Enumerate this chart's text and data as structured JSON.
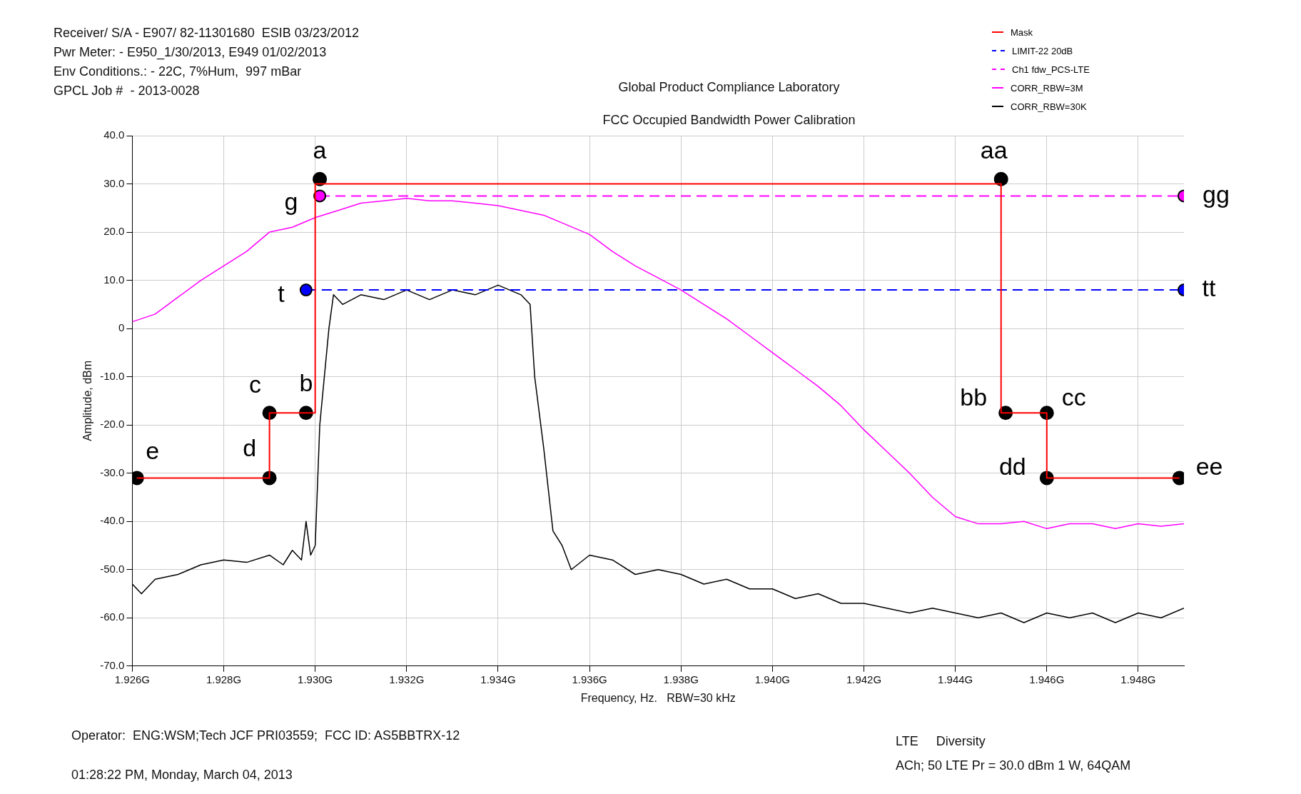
{
  "chart_data": {
    "type": "line",
    "title": "Global Product Compliance Laboratory",
    "subtitle": "FCC Occupied Bandwidth Power Calibration",
    "xlabel": "Frequency, Hz.   RBW=30 kHz",
    "ylabel": "Amplitude, dBm",
    "xlim": [
      1.926,
      1.949
    ],
    "xticks": [
      {
        "value": 1.926,
        "label": "1.926G"
      },
      {
        "value": 1.928,
        "label": "1.928G"
      },
      {
        "value": 1.93,
        "label": "1.930G"
      },
      {
        "value": 1.932,
        "label": "1.932G"
      },
      {
        "value": 1.934,
        "label": "1.934G"
      },
      {
        "value": 1.936,
        "label": "1.936G"
      },
      {
        "value": 1.938,
        "label": "1.938G"
      },
      {
        "value": 1.94,
        "label": "1.940G"
      },
      {
        "value": 1.942,
        "label": "1.942G"
      },
      {
        "value": 1.944,
        "label": "1.944G"
      },
      {
        "value": 1.946,
        "label": "1.946G"
      },
      {
        "value": 1.948,
        "label": "1.948G"
      }
    ],
    "ylim": [
      -70,
      40
    ],
    "yticks": [
      {
        "value": -70,
        "label": "-70.0"
      },
      {
        "value": -60,
        "label": "-60.0"
      },
      {
        "value": -50,
        "label": "-50.0"
      },
      {
        "value": -40,
        "label": "-40.0"
      },
      {
        "value": -30,
        "label": "-30.0"
      },
      {
        "value": -20,
        "label": "-20.0"
      },
      {
        "value": -10,
        "label": "-10.0"
      },
      0,
      {
        "value": 10,
        "label": "10.0"
      },
      {
        "value": 20,
        "label": "20.0"
      },
      {
        "value": 30,
        "label": "30.0"
      },
      {
        "value": 40,
        "label": "40.0"
      }
    ],
    "grid": true,
    "legend": "top right",
    "marker": "none",
    "line_style": "solid",
    "series": [
      {
        "name": "Mask",
        "color": "#ff0000",
        "x": [
          1.9261,
          1.929,
          1.929,
          1.93,
          1.93,
          1.945,
          1.945,
          1.946,
          1.946,
          1.9489
        ],
        "values": [
          -31,
          -31,
          -17.5,
          -17.5,
          30,
          30,
          -17.5,
          -17.5,
          -31,
          -31
        ]
      },
      {
        "name": "LIMIT-22 20dB",
        "color": "#0000ff",
        "line_style": "dashed",
        "marker": "circle",
        "x": [
          1.9298,
          1.949
        ],
        "values": [
          8,
          8
        ]
      },
      {
        "name": "Ch1 fdw_PCS-LTE",
        "color": "#ff00ff",
        "line_style": "dashed",
        "marker": "circle",
        "x": [
          1.9301,
          1.949
        ],
        "values": [
          27.5,
          27.5
        ]
      },
      {
        "name": "CORR_RBW=3M",
        "color": "#ff00ff",
        "x": [
          1.926,
          1.9265,
          1.927,
          1.9275,
          1.928,
          1.9285,
          1.929,
          1.9295,
          1.93,
          1.9305,
          1.931,
          1.9315,
          1.932,
          1.9325,
          1.933,
          1.9335,
          1.934,
          1.9345,
          1.935,
          1.9355,
          1.936,
          1.9365,
          1.937,
          1.9375,
          1.938,
          1.9385,
          1.939,
          1.9395,
          1.94,
          1.9405,
          1.941,
          1.9415,
          1.942,
          1.9425,
          1.943,
          1.9435,
          1.944,
          1.9445,
          1.945,
          1.9455,
          1.946,
          1.9465,
          1.947,
          1.9475,
          1.948,
          1.9485,
          1.949
        ],
        "values": [
          1.4,
          3,
          6.5,
          10,
          13,
          16,
          20,
          21,
          23,
          24.5,
          26,
          26.5,
          27,
          26.5,
          26.5,
          26,
          25.5,
          24.5,
          23.5,
          21.5,
          19.5,
          16,
          13,
          10.5,
          8,
          5,
          2,
          -1.5,
          -5,
          -8.5,
          -12,
          -16,
          -21,
          -25.5,
          -30,
          -35,
          -39,
          -40.5,
          -40.5,
          -40,
          -41.5,
          -40.5,
          -40.5,
          -41.5,
          -40.5,
          -41,
          -40.5
        ]
      },
      {
        "name": "CORR_RBW=30K",
        "color": "#000000",
        "x": [
          1.926,
          1.9262,
          1.9265,
          1.927,
          1.9275,
          1.928,
          1.9285,
          1.929,
          1.9293,
          1.9295,
          1.9297,
          1.9298,
          1.9299,
          1.93,
          1.9301,
          1.9302,
          1.9303,
          1.9304,
          1.9306,
          1.931,
          1.9315,
          1.932,
          1.9325,
          1.933,
          1.9335,
          1.934,
          1.9345,
          1.9347,
          1.9348,
          1.935,
          1.9352,
          1.9354,
          1.9356,
          1.936,
          1.9365,
          1.937,
          1.9375,
          1.938,
          1.9385,
          1.939,
          1.9395,
          1.94,
          1.9405,
          1.941,
          1.9415,
          1.942,
          1.9425,
          1.943,
          1.9435,
          1.944,
          1.9445,
          1.945,
          1.9455,
          1.946,
          1.9465,
          1.947,
          1.9475,
          1.948,
          1.9485,
          1.949
        ],
        "values": [
          -53,
          -55,
          -52,
          -51,
          -49,
          -48,
          -48.5,
          -47,
          -49,
          -46,
          -48,
          -40,
          -47,
          -45,
          -20,
          -10,
          0,
          7,
          5,
          7,
          6,
          8,
          6,
          8,
          7,
          9,
          7,
          5,
          -10,
          -25,
          -42,
          -45,
          -50,
          -47,
          -48,
          -51,
          -50,
          -51,
          -53,
          -52,
          -54,
          -54,
          -56,
          -55,
          -57,
          -57,
          -58,
          -59,
          -58,
          -59,
          -60,
          -59,
          -61,
          -59,
          -60,
          -59,
          -61,
          -59,
          -60,
          -58
        ]
      },
      {
        "type": "scatter",
        "color": "#000000",
        "marker": "circle",
        "x": [
          1.9261,
          1.929,
          1.929,
          1.9298,
          1.9301,
          1.945,
          1.9451,
          1.946,
          1.946,
          1.9489
        ],
        "values": [
          -31,
          -31,
          -17.5,
          -17.5,
          31,
          31,
          -17.5,
          -17.5,
          -31,
          -31
        ]
      }
    ],
    "annotations": [
      {
        "text": "e",
        "x": 1.9261,
        "y": -31
      },
      {
        "text": "d",
        "x": 1.929,
        "y": -31
      },
      {
        "text": "c",
        "x": 1.929,
        "y": -17.5
      },
      {
        "text": "b",
        "x": 1.9298,
        "y": -17.5
      },
      {
        "text": "a",
        "x": 1.9301,
        "y": 31
      },
      {
        "text": "aa",
        "x": 1.945,
        "y": 31
      },
      {
        "text": "bb",
        "x": 1.9451,
        "y": -17.5
      },
      {
        "text": "cc",
        "x": 1.946,
        "y": -17.5
      },
      {
        "text": "dd",
        "x": 1.946,
        "y": -31
      },
      {
        "text": "ee",
        "x": 1.9489,
        "y": -31
      },
      {
        "text": "t",
        "x": 1.9298,
        "y": 8
      },
      {
        "text": "tt",
        "x": 1.949,
        "y": 8
      },
      {
        "text": "g",
        "x": 1.9301,
        "y": 27.5
      },
      {
        "text": "gg",
        "x": 1.949,
        "y": 27.5
      },
      "Receiver/ S/A - E907/ 82-11301680  ESIB 03/23/2012",
      "Pwr Meter: - E950_1/30/2013, E949 01/02/2013",
      "Env Conditions.: - 22C, 7%Hum,  997 mBar",
      "GPCL Job #  - 2013-0028",
      "Operator:  ENG:WSM;Tech JCF PRI03559;  FCC ID: AS5BBTRX-12",
      "01:28:22 PM, Monday, March 04, 2013",
      "LTE     Diversity",
      "ACh; 50 LTE Pr = 30.0 dBm 1 W, 64QAM"
    ]
  }
}
